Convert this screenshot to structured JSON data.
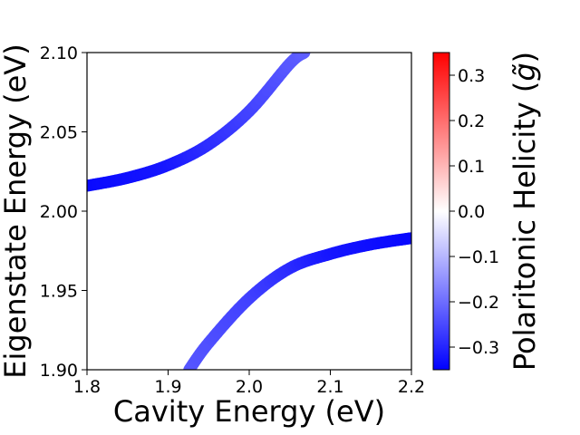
{
  "chart_data": {
    "type": "line",
    "xlabel": "Cavity Energy (eV)",
    "ylabel": "Eigenstate Energy (eV)",
    "xlim": [
      1.8,
      2.2
    ],
    "ylim": [
      1.9,
      2.1
    ],
    "x_ticks": [
      "1.8",
      "1.9",
      "2.0",
      "2.1",
      "2.2"
    ],
    "y_ticks": [
      "1.90",
      "1.95",
      "2.00",
      "2.05",
      "2.10"
    ],
    "grid": false,
    "legend": "none",
    "colorbar": {
      "label": "Polaritonic Helicity (",
      "label_symbol": "g̃",
      "label_close": ")",
      "range": [
        -0.35,
        0.35
      ],
      "colormap": "bwr",
      "ticks": [
        "−0.3",
        "−0.2",
        "−0.1",
        "0.0",
        "0.1",
        "0.2",
        "0.3"
      ],
      "tick_values": [
        -0.3,
        -0.2,
        -0.1,
        0.0,
        0.1,
        0.2,
        0.3
      ]
    },
    "series": [
      {
        "x": [
          1.8,
          1.85,
          1.9,
          1.95,
          2.0,
          2.05,
          2.068
        ],
        "y": [
          2.016,
          2.021,
          2.029,
          2.042,
          2.063,
          2.093,
          2.1
        ],
        "helicity": [
          -0.34,
          -0.33,
          -0.32,
          -0.29,
          -0.26,
          -0.23,
          -0.22
        ]
      },
      {
        "x": [
          1.926,
          1.95,
          2.0,
          2.05,
          2.1,
          2.15,
          2.2
        ],
        "y": [
          1.9,
          1.917,
          1.945,
          1.964,
          1.973,
          1.979,
          1.983
        ],
        "helicity": [
          -0.23,
          -0.24,
          -0.26,
          -0.29,
          -0.32,
          -0.33,
          -0.34
        ]
      }
    ]
  }
}
